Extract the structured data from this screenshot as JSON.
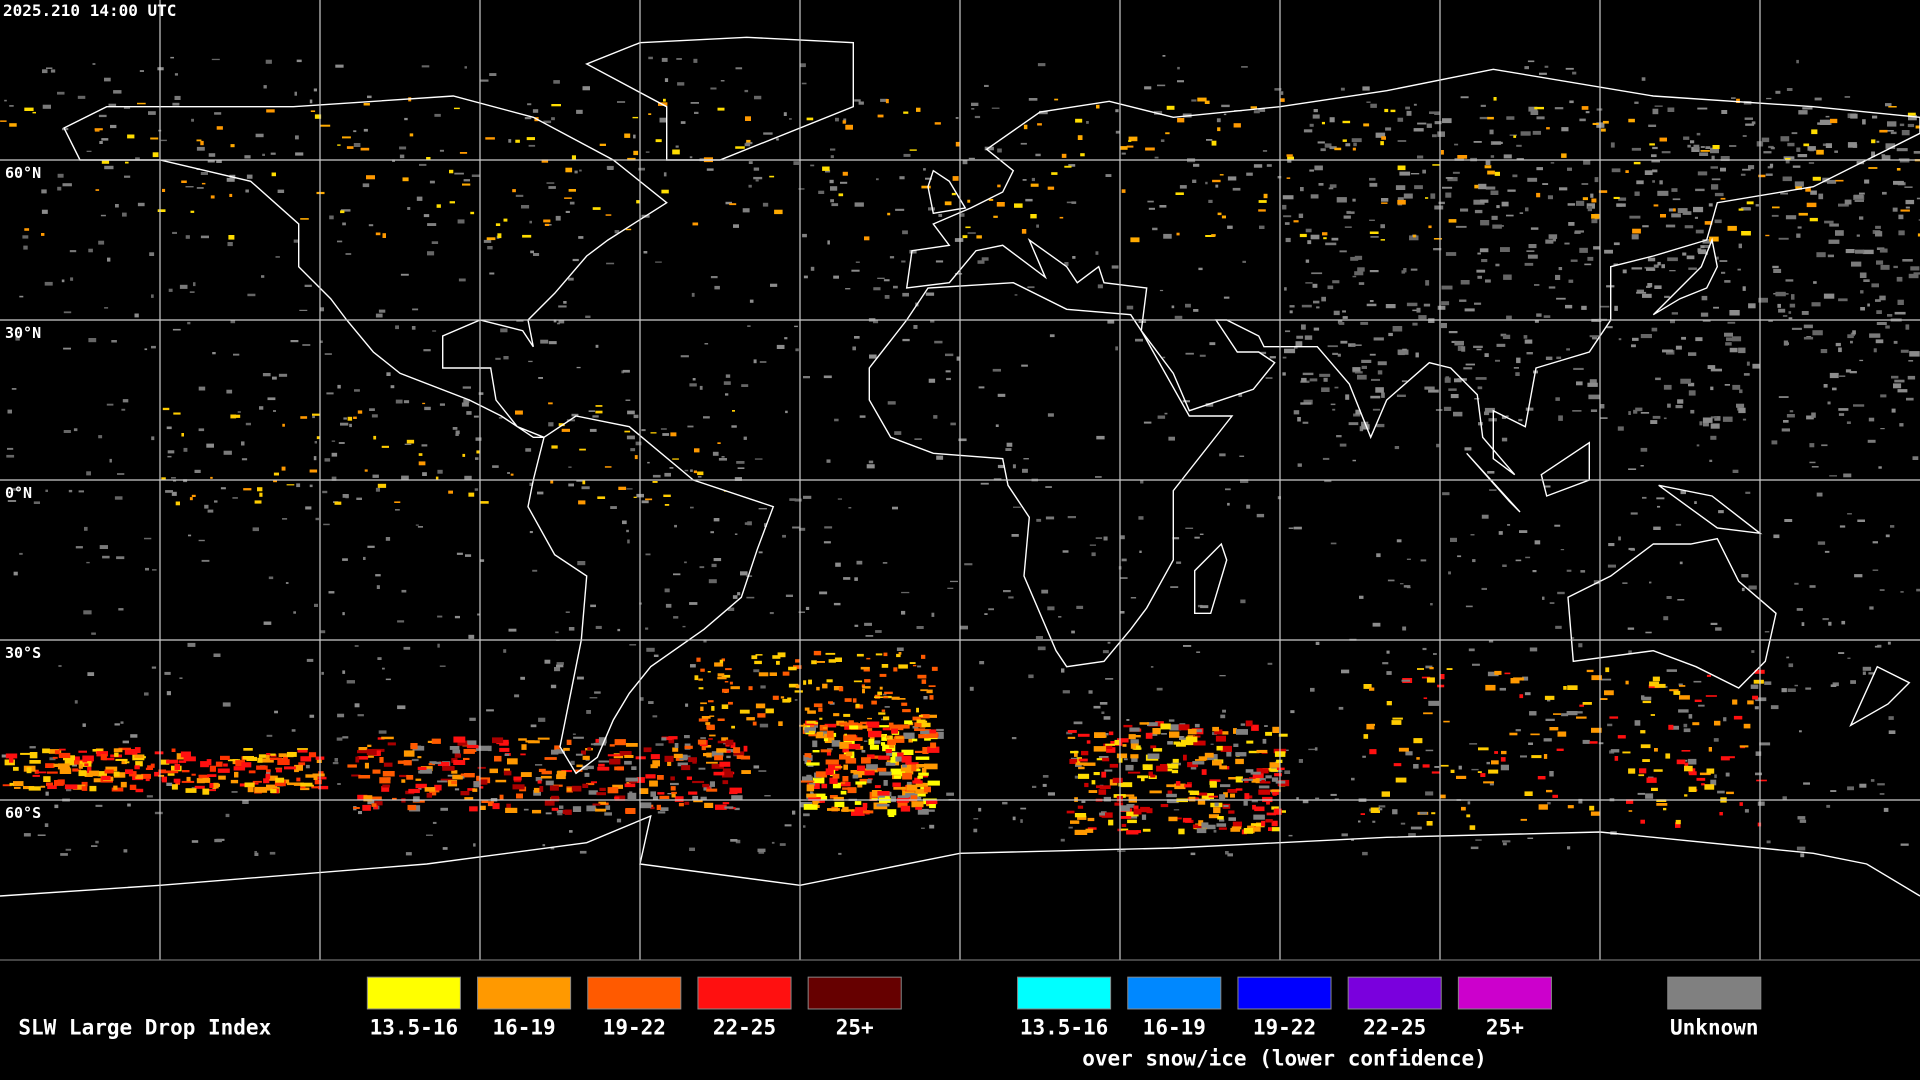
{
  "timestamp": "2025.210 14:00 UTC",
  "grid": {
    "lat_labels": [
      "60°N",
      "30°N",
      "0°N",
      "30°S",
      "60°S"
    ]
  },
  "legend": {
    "title": "SLW Large Drop Index",
    "groups": [
      {
        "items": [
          {
            "label": "13.5-16",
            "color": "#ffff00"
          },
          {
            "label": "16-19",
            "color": "#ff9900"
          },
          {
            "label": "19-22",
            "color": "#ff5a00"
          },
          {
            "label": "22-25",
            "color": "#ff1010"
          },
          {
            "label": "25+",
            "color": "#660000"
          }
        ]
      },
      {
        "items": [
          {
            "label": "13.5-16",
            "color": "#00ffff"
          },
          {
            "label": "16-19",
            "color": "#0088ff"
          },
          {
            "label": "19-22",
            "color": "#0000ff"
          },
          {
            "label": "22-25",
            "color": "#7a00dd"
          },
          {
            "label": "25+",
            "color": "#cc00cc"
          }
        ],
        "note": "over snow/ice (lower confidence)"
      }
    ],
    "unknown": {
      "label": "Unknown",
      "color": "#808080"
    }
  }
}
